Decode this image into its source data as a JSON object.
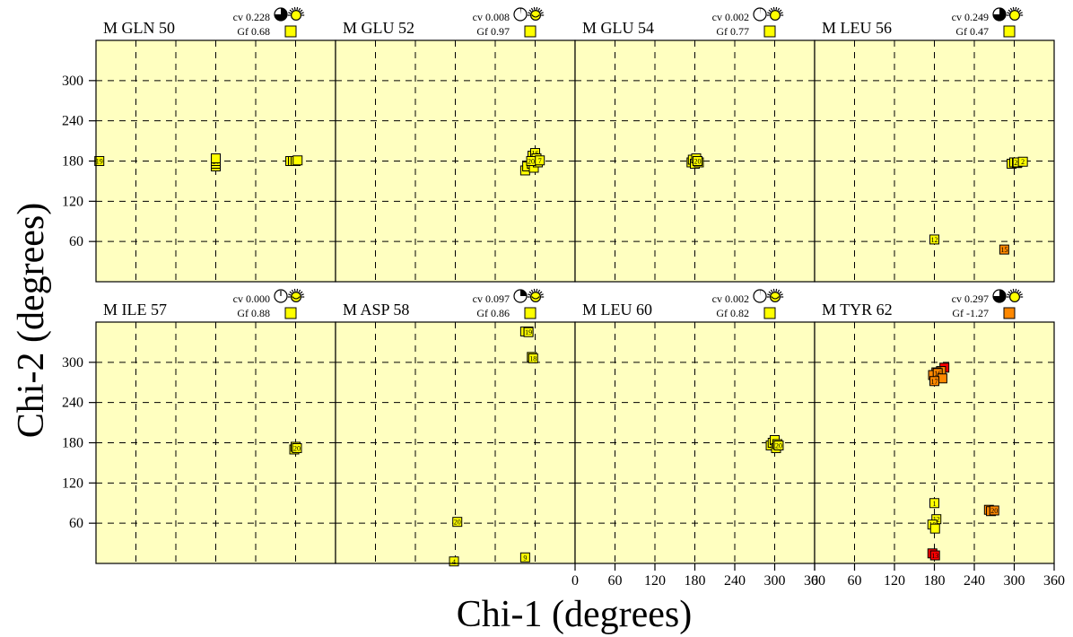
{
  "chart_data": {
    "type": "scatter",
    "xlabel": "Chi-1 (degrees)",
    "ylabel": "Chi-2 (degrees)",
    "xlim": [
      0,
      360
    ],
    "ylim": [
      0,
      360
    ],
    "x_ticks": [
      0,
      60,
      120,
      180,
      240,
      300,
      360
    ],
    "x_tick_labels": [
      "0",
      "60",
      "120",
      "180",
      "240",
      "300",
      "360"
    ],
    "y_ticks": [
      60,
      120,
      180,
      240,
      300
    ],
    "y_tick_labels": [
      "60",
      "120",
      "180",
      "240",
      "300"
    ],
    "grid": true,
    "colors": {
      "background": "#ffffc0",
      "yellow": "#ffff00",
      "orange": "#ff8800",
      "red": "#ff0000"
    },
    "panels": [
      {
        "title": "M GLN 50",
        "cv_label": "cv 0.228",
        "gf_label": "Gf  0.68",
        "gf_color": "#ffff00",
        "clock_fraction": 0.75,
        "badge": "sun",
        "points": [
          {
            "x": 5,
            "y": 180,
            "label": "19",
            "color": "#ffff00"
          },
          {
            "x": 180,
            "y": 172,
            "label": "",
            "color": "#ffff00"
          },
          {
            "x": 180,
            "y": 176,
            "label": "",
            "color": "#ffff00"
          },
          {
            "x": 180,
            "y": 180,
            "label": "20",
            "color": "#ffff00"
          },
          {
            "x": 180,
            "y": 184,
            "label": "",
            "color": "#ffff00"
          },
          {
            "x": 292,
            "y": 180,
            "label": "",
            "color": "#ffff00"
          },
          {
            "x": 296,
            "y": 180,
            "label": "",
            "color": "#ffff00"
          },
          {
            "x": 300,
            "y": 180,
            "label": "15",
            "color": "#ffff00"
          },
          {
            "x": 303,
            "y": 181,
            "label": "",
            "color": "#ffff00"
          }
        ]
      },
      {
        "title": "M GLU 52",
        "cv_label": "cv 0.008",
        "gf_label": "Gf  0.97",
        "gf_color": "#ffff00",
        "clock_fraction": 0.02,
        "badge": "sun-filled",
        "points": [
          {
            "x": 285,
            "y": 166,
            "label": "",
            "color": "#ffff00"
          },
          {
            "x": 288,
            "y": 172,
            "label": "",
            "color": "#ffff00"
          },
          {
            "x": 295,
            "y": 176,
            "label": "",
            "color": "#ffff00"
          },
          {
            "x": 298,
            "y": 170,
            "label": "",
            "color": "#ffff00"
          },
          {
            "x": 302,
            "y": 180,
            "label": "",
            "color": "#ffff00"
          },
          {
            "x": 296,
            "y": 188,
            "label": "",
            "color": "#ffff00"
          },
          {
            "x": 300,
            "y": 192,
            "label": "16",
            "color": "#ffff00"
          },
          {
            "x": 302,
            "y": 184,
            "label": "",
            "color": "#ffff00"
          },
          {
            "x": 304,
            "y": 178,
            "label": "",
            "color": "#ffff00"
          },
          {
            "x": 294,
            "y": 180,
            "label": "20",
            "color": "#ffff00"
          },
          {
            "x": 307,
            "y": 181,
            "label": "7",
            "color": "#ffff00"
          }
        ]
      },
      {
        "title": "M GLU 54",
        "cv_label": "cv 0.002",
        "gf_label": "Gf  0.77",
        "gf_color": "#ffff00",
        "clock_fraction": 0.01,
        "badge": "sun",
        "points": [
          {
            "x": 175,
            "y": 178,
            "label": "",
            "color": "#ffff00"
          },
          {
            "x": 177,
            "y": 182,
            "label": "",
            "color": "#ffff00"
          },
          {
            "x": 180,
            "y": 176,
            "label": "",
            "color": "#ffff00"
          },
          {
            "x": 182,
            "y": 184,
            "label": "",
            "color": "#ffff00"
          },
          {
            "x": 184,
            "y": 180,
            "label": "",
            "color": "#ffff00"
          },
          {
            "x": 186,
            "y": 178,
            "label": "",
            "color": "#ffff00"
          },
          {
            "x": 184,
            "y": 180,
            "label": "20",
            "color": "#ffff00"
          }
        ]
      },
      {
        "title": "M LEU 56",
        "cv_label": "cv 0.249",
        "gf_label": "Gf  0.47",
        "gf_color": "#ffff00",
        "clock_fraction": 0.75,
        "badge": "sun",
        "points": [
          {
            "x": 296,
            "y": 176,
            "label": "",
            "color": "#ffff00"
          },
          {
            "x": 300,
            "y": 178,
            "label": "",
            "color": "#ffff00"
          },
          {
            "x": 304,
            "y": 177,
            "label": "",
            "color": "#ffff00"
          },
          {
            "x": 305,
            "y": 178,
            "label": "20",
            "color": "#ffff00"
          },
          {
            "x": 313,
            "y": 179,
            "label": "2",
            "color": "#ffff00"
          },
          {
            "x": 180,
            "y": 63,
            "label": "12",
            "color": "#ffff00"
          },
          {
            "x": 285,
            "y": 48,
            "label": "15",
            "color": "#ff8800"
          }
        ]
      },
      {
        "title": "M ILE 57",
        "cv_label": "cv 0.000",
        "gf_label": "Gf  0.88",
        "gf_color": "#ffff00",
        "clock_fraction": 0.0,
        "badge": "sun-filled",
        "points": [
          {
            "x": 298,
            "y": 170,
            "label": "",
            "color": "#ffff00"
          },
          {
            "x": 300,
            "y": 174,
            "label": "",
            "color": "#ffff00"
          },
          {
            "x": 302,
            "y": 172,
            "label": "20",
            "color": "#ffff00"
          }
        ]
      },
      {
        "title": "M ASP 58",
        "cv_label": "cv 0.097",
        "gf_label": "Gf  0.86",
        "gf_color": "#ffff00",
        "clock_fraction": 0.25,
        "badge": "sun-filled",
        "points": [
          {
            "x": 285,
            "y": 346,
            "label": "",
            "color": "#ffff00"
          },
          {
            "x": 290,
            "y": 346,
            "label": "",
            "color": "#ffff00"
          },
          {
            "x": 290,
            "y": 345,
            "label": "19",
            "color": "#ffff00"
          },
          {
            "x": 295,
            "y": 308,
            "label": "",
            "color": "#ffff00"
          },
          {
            "x": 297,
            "y": 306,
            "label": "18",
            "color": "#ffff00"
          },
          {
            "x": 183,
            "y": 62,
            "label": "20",
            "color": "#ffff00"
          },
          {
            "x": 178,
            "y": 3,
            "label": "4",
            "color": "#ffff00"
          },
          {
            "x": 285,
            "y": 9,
            "label": "9",
            "color": "#ffff00"
          }
        ]
      },
      {
        "title": "M LEU 60",
        "cv_label": "cv 0.002",
        "gf_label": "Gf  0.82",
        "gf_color": "#ffff00",
        "clock_fraction": 0.01,
        "badge": "sun-filled",
        "points": [
          {
            "x": 294,
            "y": 176,
            "label": "",
            "color": "#ffff00"
          },
          {
            "x": 297,
            "y": 180,
            "label": "",
            "color": "#ffff00"
          },
          {
            "x": 300,
            "y": 184,
            "label": "",
            "color": "#ffff00"
          },
          {
            "x": 302,
            "y": 172,
            "label": "",
            "color": "#ffff00"
          },
          {
            "x": 304,
            "y": 178,
            "label": "",
            "color": "#ffff00"
          },
          {
            "x": 306,
            "y": 176,
            "label": "20",
            "color": "#ffff00"
          }
        ]
      },
      {
        "title": "M TYR 62",
        "cv_label": "cv 0.297",
        "gf_label": "Gf -1.27",
        "gf_color": "#ff8800",
        "clock_fraction": 0.75,
        "badge": "sun",
        "points": [
          {
            "x": 195,
            "y": 292,
            "label": "",
            "color": "#ff0000"
          },
          {
            "x": 190,
            "y": 287,
            "label": "",
            "color": "#ff8800"
          },
          {
            "x": 183,
            "y": 285,
            "label": "",
            "color": "#ff8800"
          },
          {
            "x": 178,
            "y": 281,
            "label": "",
            "color": "#ff8800"
          },
          {
            "x": 185,
            "y": 284,
            "label": "16",
            "color": "#ff8800"
          },
          {
            "x": 192,
            "y": 276,
            "label": "",
            "color": "#ff8800"
          },
          {
            "x": 180,
            "y": 272,
            "label": "17",
            "color": "#ff8800"
          },
          {
            "x": 180,
            "y": 90,
            "label": "1",
            "color": "#ffff00"
          },
          {
            "x": 183,
            "y": 66,
            "label": "12",
            "color": "#ffff00"
          },
          {
            "x": 177,
            "y": 58,
            "label": "10",
            "color": "#ffff00"
          },
          {
            "x": 181,
            "y": 52,
            "label": "",
            "color": "#ffff00"
          },
          {
            "x": 177,
            "y": 15,
            "label": "",
            "color": "#ff0000"
          },
          {
            "x": 181,
            "y": 12,
            "label": "13",
            "color": "#ff0000"
          },
          {
            "x": 262,
            "y": 80,
            "label": "",
            "color": "#ff8800"
          },
          {
            "x": 265,
            "y": 78,
            "label": "",
            "color": "#ff8800"
          },
          {
            "x": 270,
            "y": 79,
            "label": "20",
            "color": "#ff8800"
          }
        ]
      }
    ]
  }
}
